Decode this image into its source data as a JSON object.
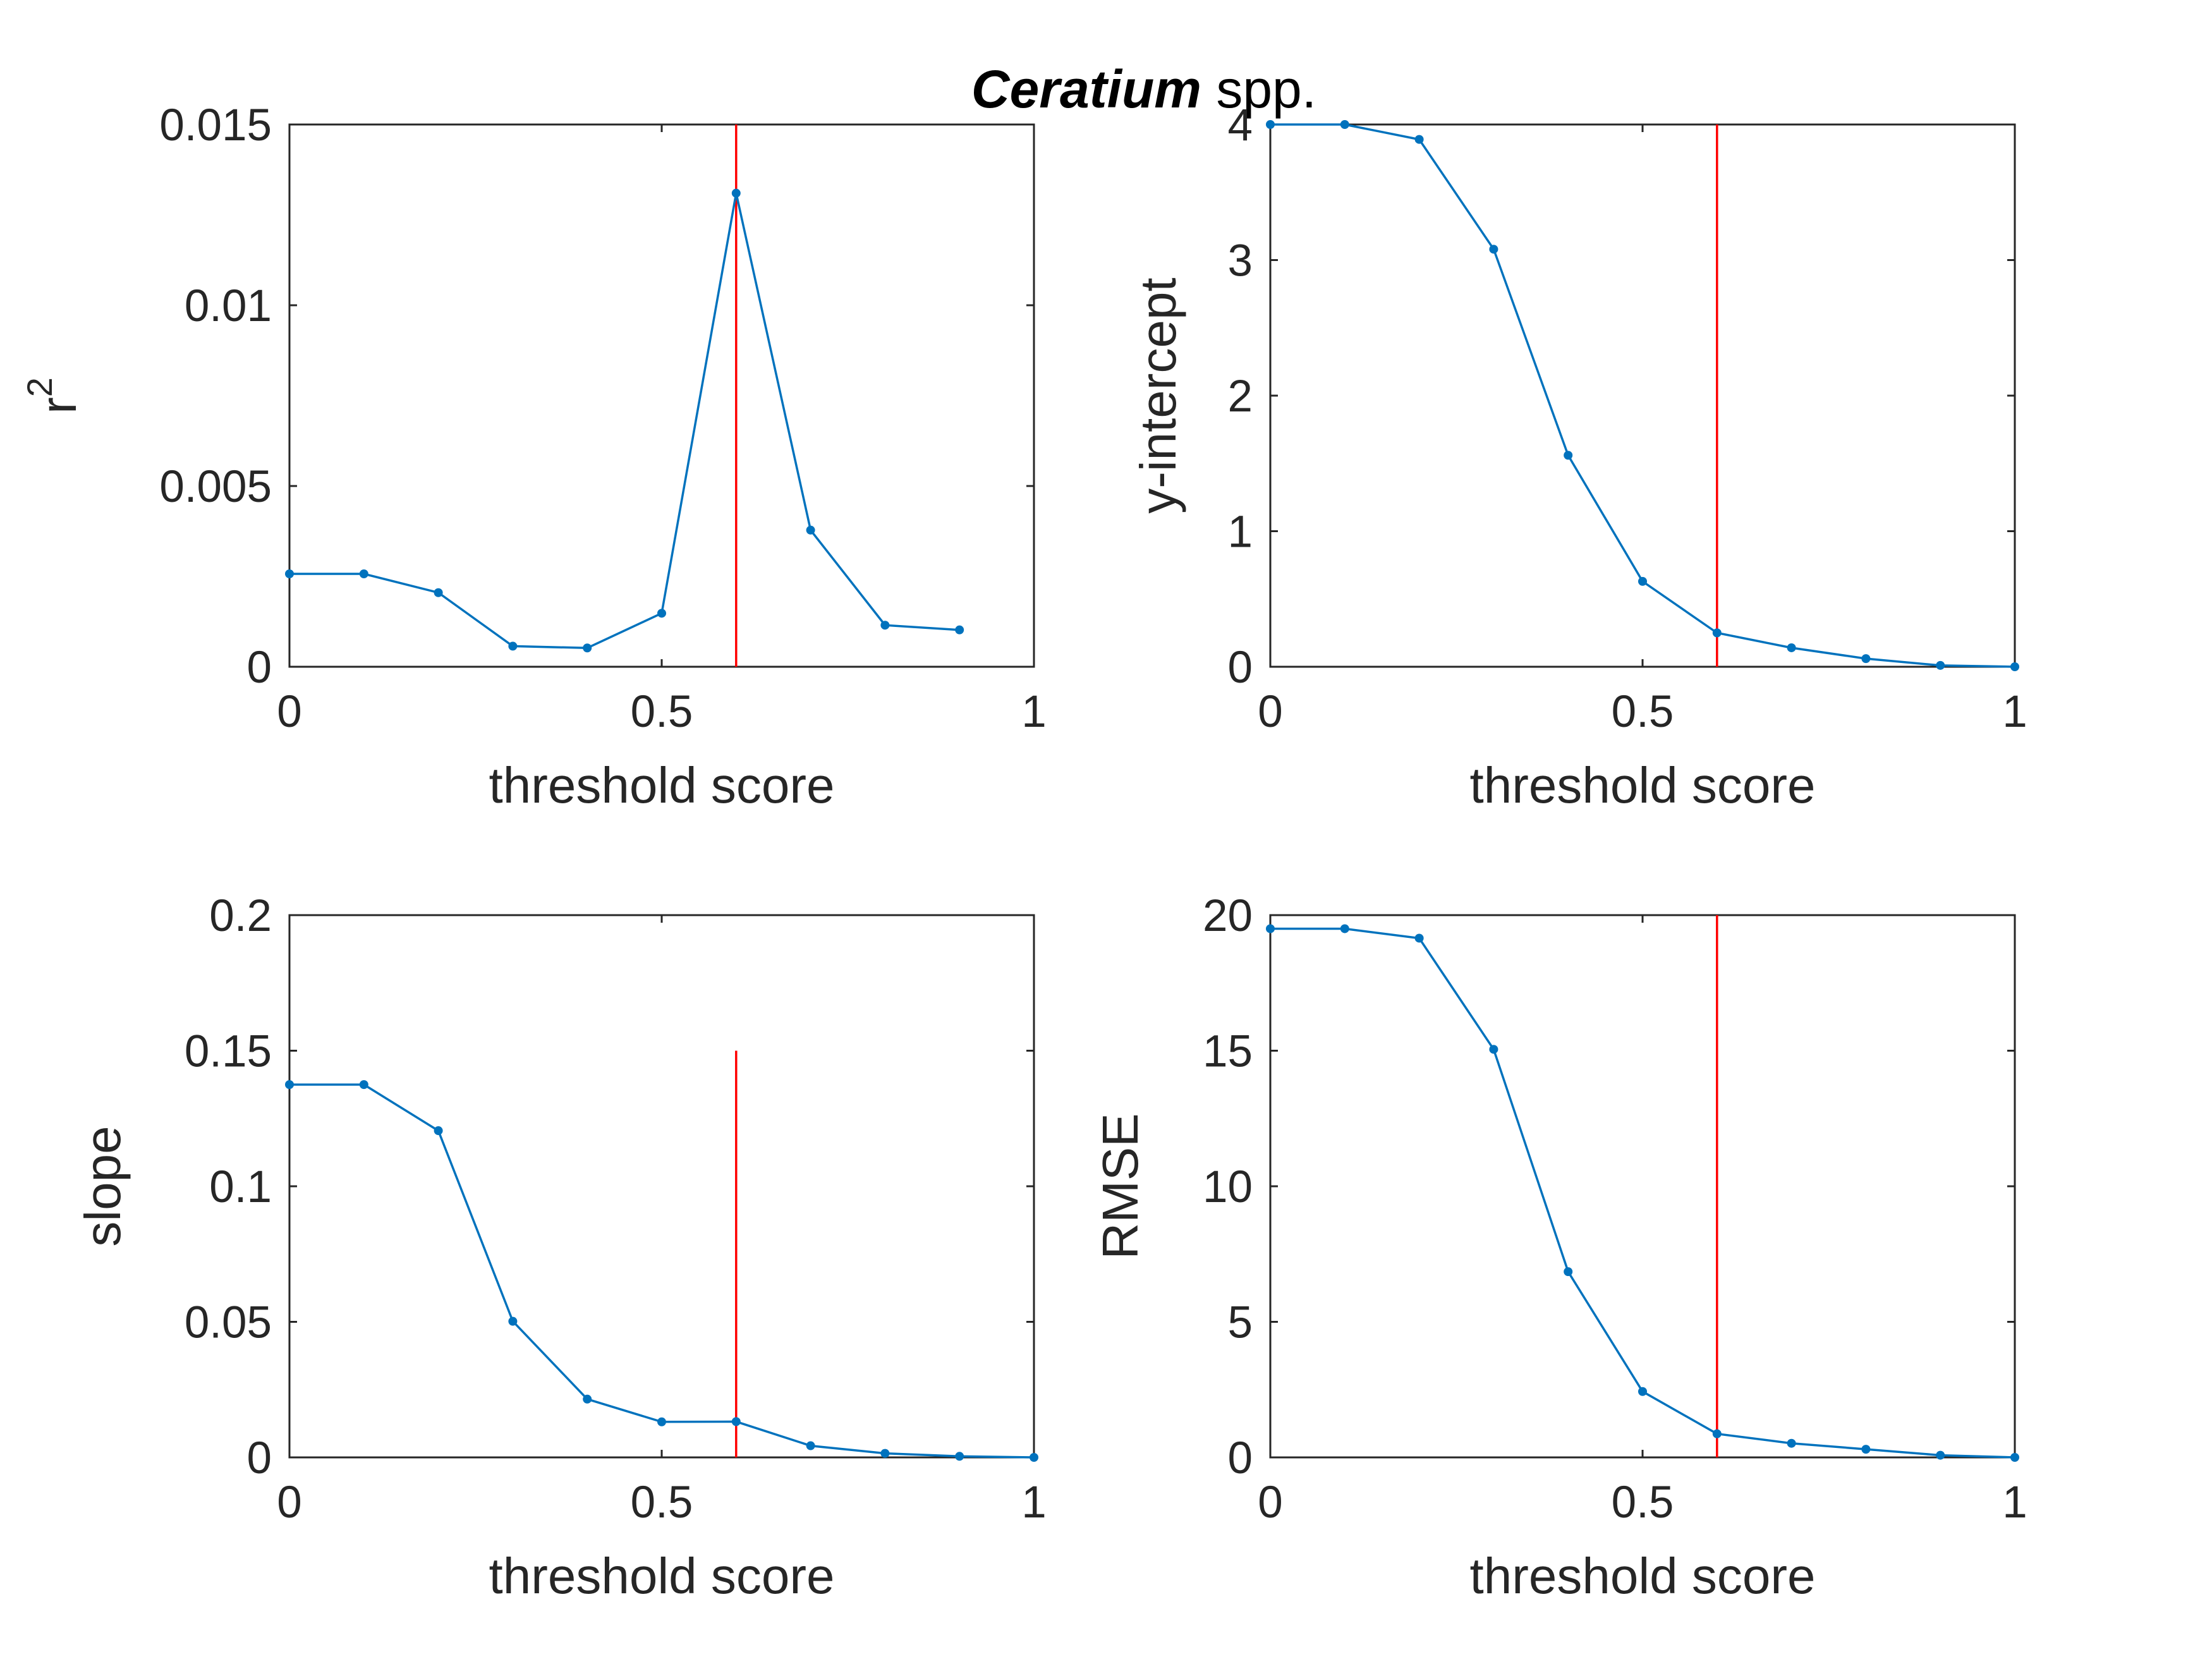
{
  "figure": {
    "title_italic": "Ceratium",
    "title_rest": " spp."
  },
  "colors": {
    "series": "#0072BD",
    "reference_line": "#FF0000",
    "axes": "#262626"
  },
  "chart_data": [
    {
      "type": "line",
      "xlabel": "threshold score",
      "ylabel": "r",
      "ylabel_superscript": "2",
      "xlim": [
        0,
        1
      ],
      "ylim": [
        0,
        0.015
      ],
      "xticks": [
        0,
        0.5,
        1
      ],
      "xtick_labels": [
        "0",
        "0.5",
        "1"
      ],
      "yticks": [
        0,
        0.005,
        0.01,
        0.015
      ],
      "ytick_labels": [
        "0",
        "0.005",
        "0.01",
        "0.015"
      ],
      "x": [
        0,
        0.1,
        0.2,
        0.3,
        0.4,
        0.5,
        0.6,
        0.7,
        0.8,
        0.9
      ],
      "y": [
        0.00257,
        0.00257,
        0.00205,
        0.00057,
        0.00052,
        0.00148,
        0.0131,
        0.00378,
        0.00115,
        0.00102
      ],
      "reference_line": {
        "x": 0.6,
        "y_from": 0,
        "y_to": 0.015
      },
      "grid": false
    },
    {
      "type": "line",
      "xlabel": "threshold score",
      "ylabel": "y-intercept",
      "xlim": [
        0,
        1
      ],
      "ylim": [
        0,
        4
      ],
      "xticks": [
        0,
        0.5,
        1
      ],
      "xtick_labels": [
        "0",
        "0.5",
        "1"
      ],
      "yticks": [
        0,
        1,
        2,
        3,
        4
      ],
      "ytick_labels": [
        "0",
        "1",
        "2",
        "3",
        "4"
      ],
      "x": [
        0,
        0.1,
        0.2,
        0.3,
        0.4,
        0.5,
        0.6,
        0.7,
        0.8,
        0.9,
        1.0
      ],
      "y": [
        4.0,
        4.0,
        3.89,
        3.08,
        1.56,
        0.63,
        0.25,
        0.14,
        0.06,
        0.01,
        0.0
      ],
      "reference_line": {
        "x": 0.6,
        "y_from": 0,
        "y_to": 4
      },
      "grid": false
    },
    {
      "type": "line",
      "xlabel": "threshold score",
      "ylabel": "slope",
      "xlim": [
        0,
        1
      ],
      "ylim": [
        0,
        0.2
      ],
      "xticks": [
        0,
        0.5,
        1
      ],
      "xtick_labels": [
        "0",
        "0.5",
        "1"
      ],
      "yticks": [
        0,
        0.05,
        0.1,
        0.15,
        0.2
      ],
      "ytick_labels": [
        "0",
        "0.05",
        "0.1",
        "0.15",
        "0.2"
      ],
      "x": [
        0,
        0.1,
        0.2,
        0.3,
        0.4,
        0.5,
        0.6,
        0.7,
        0.8,
        0.9,
        1.0
      ],
      "y": [
        0.1375,
        0.1375,
        0.1205,
        0.0502,
        0.0215,
        0.0131,
        0.0132,
        0.0043,
        0.0015,
        0.0004,
        0.0
      ],
      "reference_line": {
        "x": 0.6,
        "y_from": 0,
        "y_to": 0.15
      },
      "grid": false
    },
    {
      "type": "line",
      "xlabel": "threshold score",
      "ylabel": "RMSE",
      "xlim": [
        0,
        1
      ],
      "ylim": [
        0,
        20
      ],
      "xticks": [
        0,
        0.5,
        1
      ],
      "xtick_labels": [
        "0",
        "0.5",
        "1"
      ],
      "yticks": [
        0,
        5,
        10,
        15,
        20
      ],
      "ytick_labels": [
        "0",
        "5",
        "10",
        "15",
        "20"
      ],
      "x": [
        0,
        0.1,
        0.2,
        0.3,
        0.4,
        0.5,
        0.6,
        0.7,
        0.8,
        0.9,
        1.0
      ],
      "y": [
        19.5,
        19.5,
        19.15,
        15.05,
        6.85,
        2.43,
        0.87,
        0.52,
        0.3,
        0.08,
        0.0
      ],
      "reference_line": {
        "x": 0.6,
        "y_from": 0,
        "y_to": 20
      },
      "grid": false
    }
  ]
}
